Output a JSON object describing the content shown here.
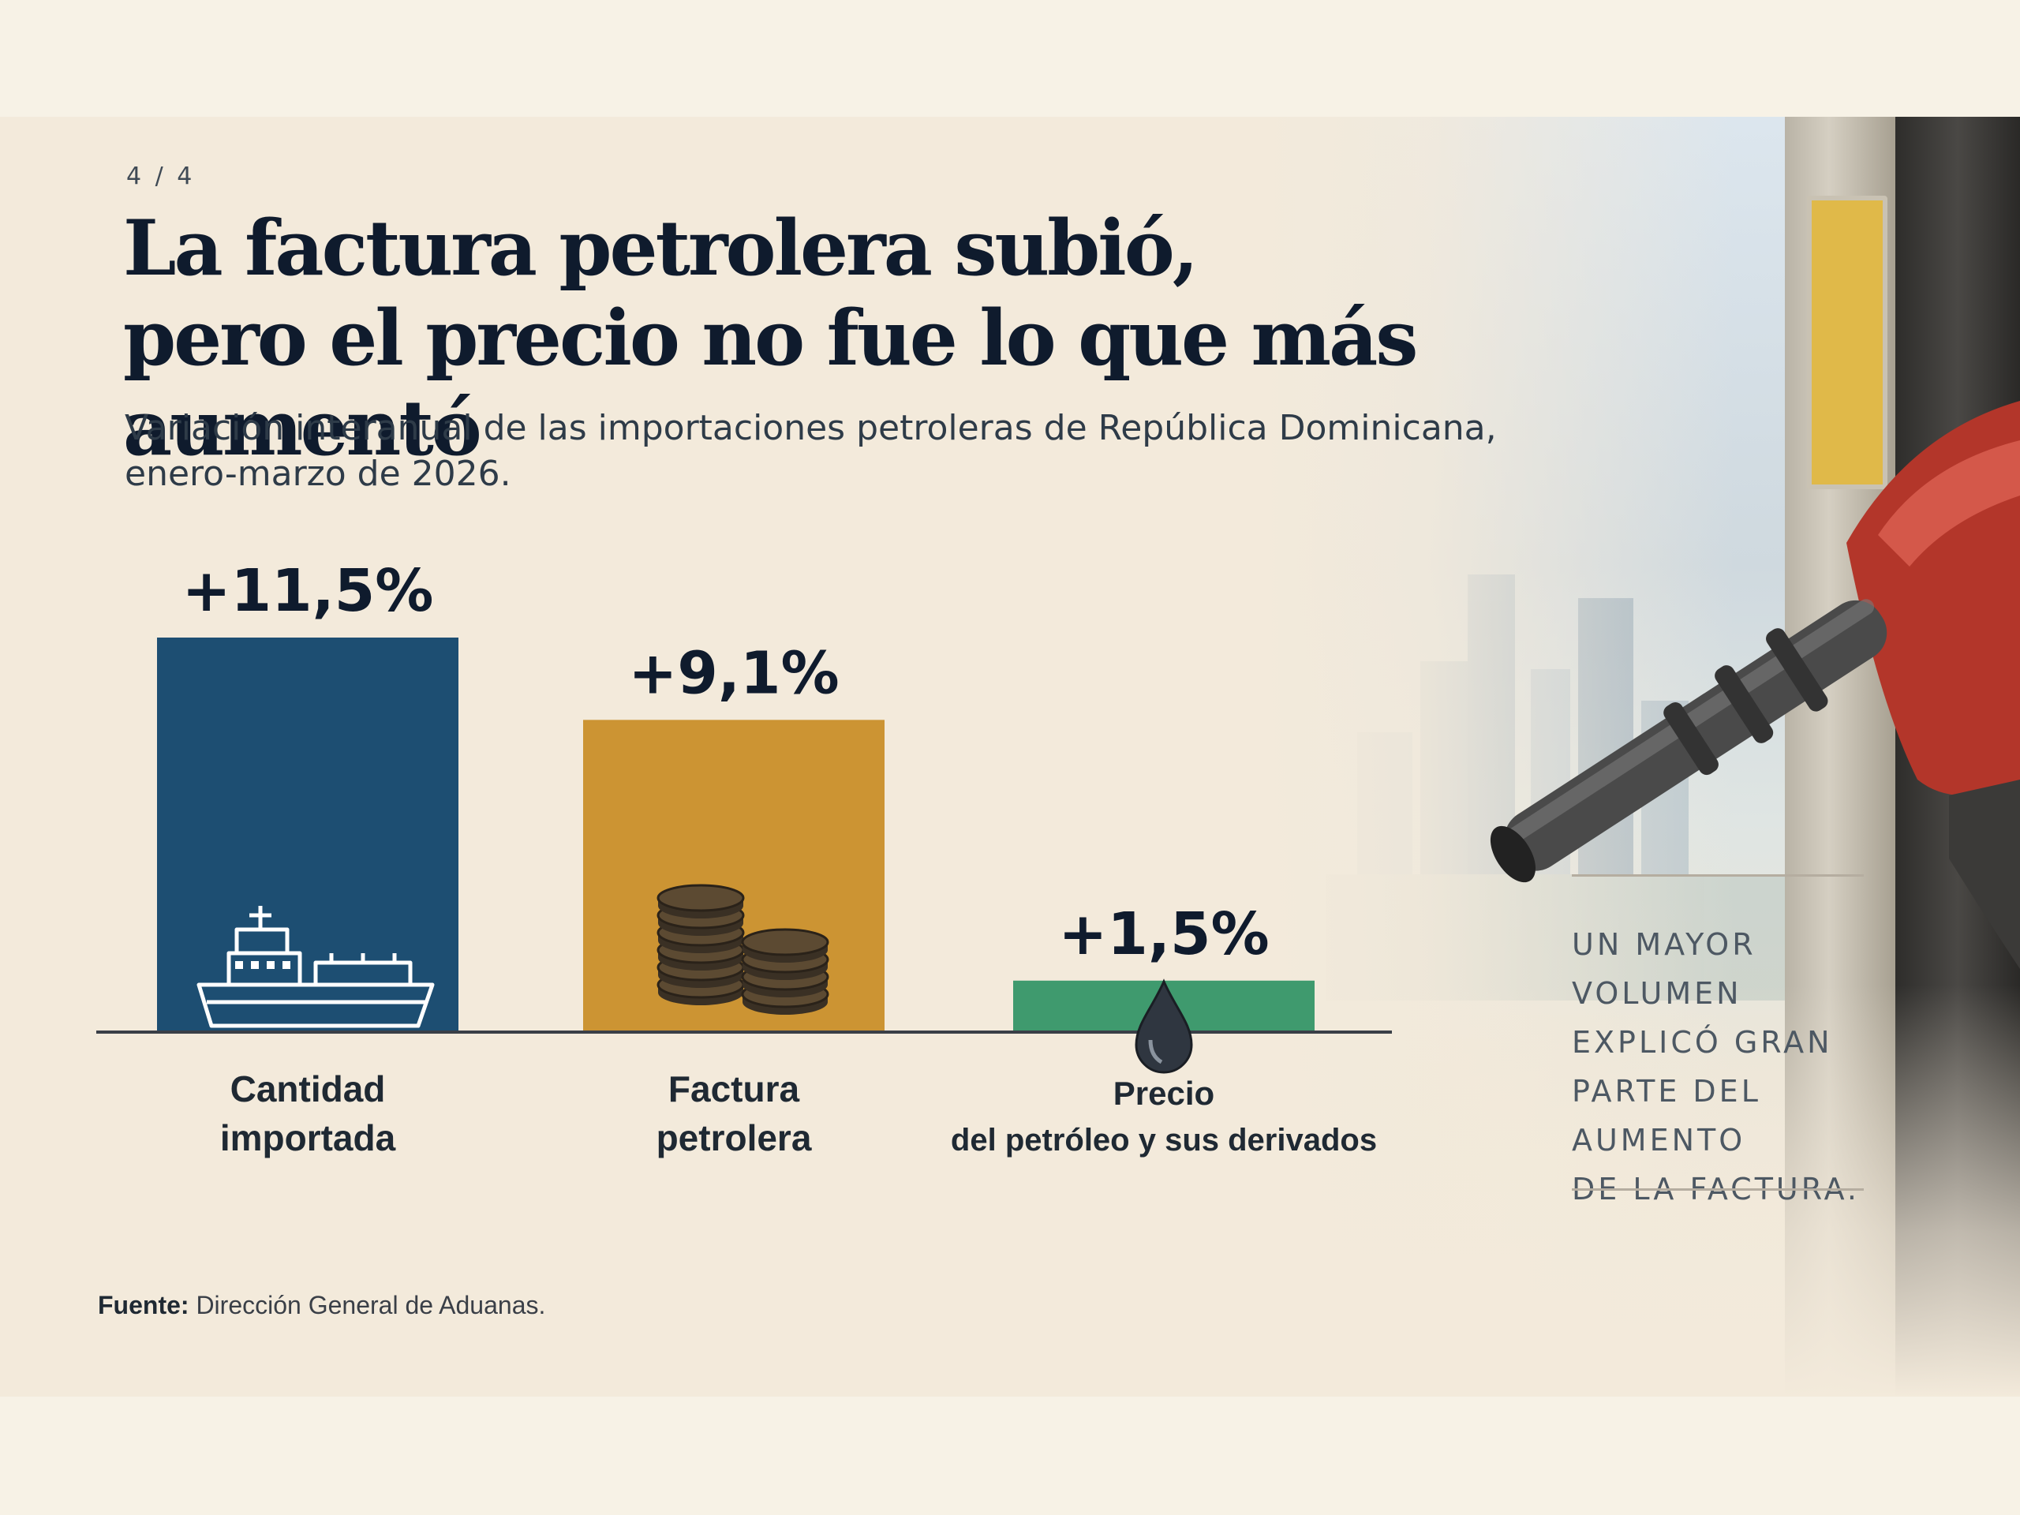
{
  "page_counter": "4 / 4",
  "title_lines": [
    "La factura petrolera subió,",
    "pero el precio no fue lo que más aumentó"
  ],
  "subtitle_lines": [
    "Variación interanual de las importaciones petroleras de República Dominicana,",
    "enero-marzo de 2026."
  ],
  "annotation_lines": [
    "Un mayor",
    "volumen",
    "explicó gran",
    "parte del aumento",
    "de la factura."
  ],
  "source": {
    "label": "Fuente:",
    "text": "Dirección General de Aduanas."
  },
  "colors": {
    "quantity": "#1d4e72",
    "bill": "#cc9433",
    "price": "#3f9a6e",
    "value_text": "#0f1b2d",
    "axis": "#3a3f47"
  },
  "icons": [
    "ship-icon",
    "coins-icon",
    "oil-drop-icon"
  ],
  "chart_data": {
    "type": "bar",
    "title": "La factura petrolera subió, pero el precio no fue lo que más aumentó",
    "xlabel": "",
    "ylabel": "",
    "ylim": [
      0,
      11.5
    ],
    "grid": false,
    "legend": "none",
    "categories": [
      [
        "Cantidad",
        "importada"
      ],
      [
        "Factura",
        "petrolera"
      ],
      [
        "Precio",
        "del petróleo y sus derivados"
      ]
    ],
    "values": [
      11.5,
      9.1,
      1.5
    ],
    "value_labels": [
      "+11,5%",
      "+9,1%",
      "+1,5%"
    ],
    "unit": "%"
  }
}
